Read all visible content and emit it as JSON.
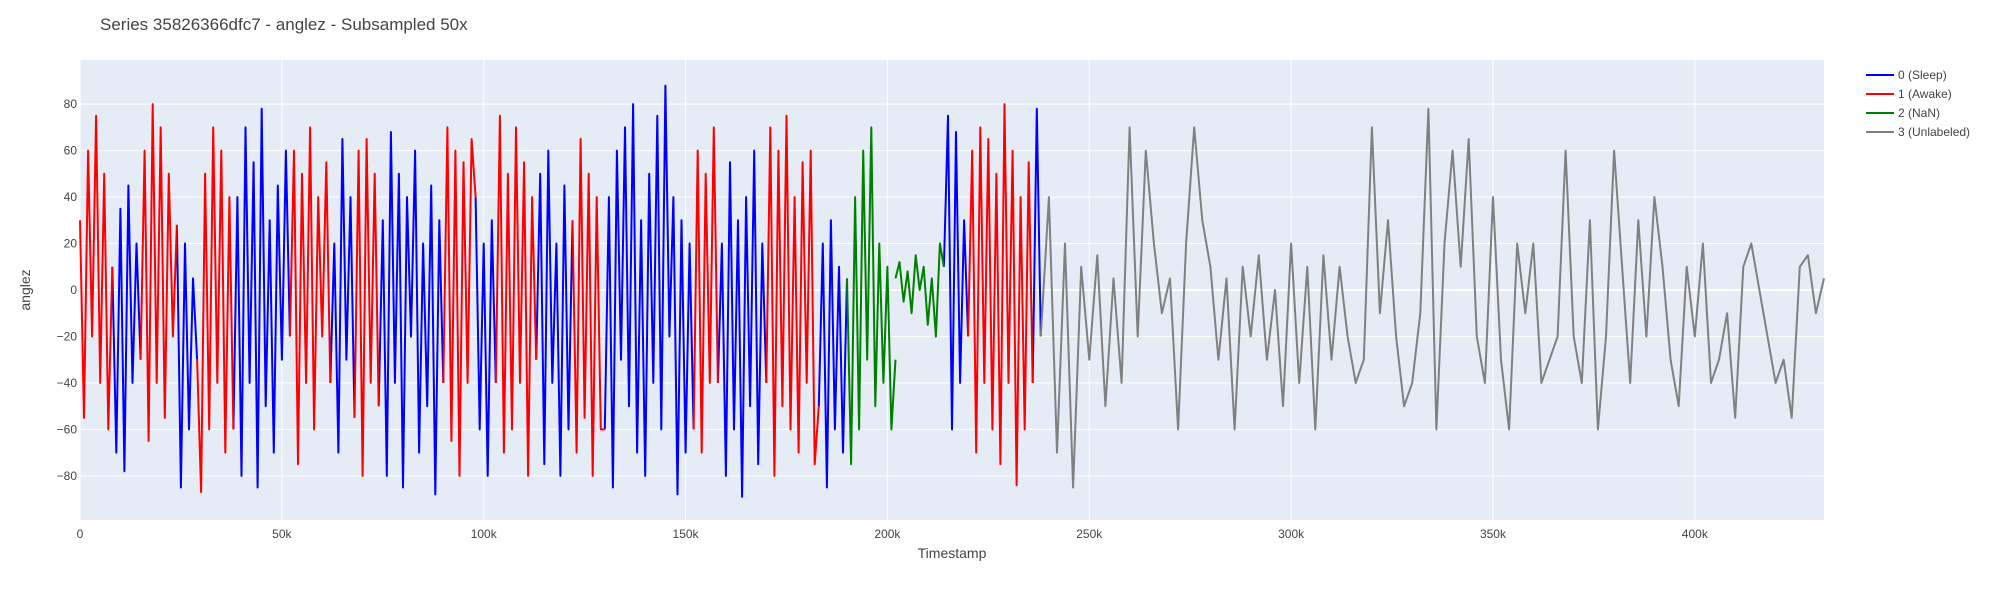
{
  "chart_data": {
    "type": "line",
    "title": "Series 35826366dfc7 - anglez - Subsampled 50x",
    "xlabel": "Timestamp",
    "ylabel": "anglez",
    "xlim": [
      0,
      432000
    ],
    "ylim": [
      -99,
      99
    ],
    "x_ticks": [
      0,
      50000,
      100000,
      150000,
      200000,
      250000,
      300000,
      350000,
      400000
    ],
    "x_tick_labels": [
      "0",
      "50k",
      "100k",
      "150k",
      "200k",
      "250k",
      "300k",
      "350k",
      "400k"
    ],
    "y_ticks": [
      -80,
      -60,
      -40,
      -20,
      0,
      20,
      40,
      60,
      80
    ],
    "y_tick_labels": [
      "−80",
      "−60",
      "−40",
      "−20",
      "0",
      "20",
      "40",
      "60",
      "80"
    ],
    "grid": true,
    "legend_position": "top-right",
    "series": [
      {
        "name": "0 (Sleep)",
        "color": "#0000ff",
        "segments": [
          {
            "x": [
              8000,
              9000,
              10000,
              11000,
              12000,
              13000,
              14000,
              15000
            ],
            "y": [
              10,
              -70,
              35,
              -78,
              45,
              -40,
              20,
              -30
            ]
          },
          {
            "x": [
              24000,
              25000,
              26000,
              27000,
              28000,
              29000
            ],
            "y": [
              28,
              -85,
              20,
              -60,
              5,
              -30
            ]
          },
          {
            "x": [
              38000,
              39000,
              40000,
              41000,
              42000,
              43000,
              44000,
              45000,
              46000,
              47000,
              48000,
              49000,
              50000,
              51000,
              52000
            ],
            "y": [
              -60,
              40,
              -80,
              70,
              -40,
              55,
              -85,
              78,
              -50,
              30,
              -70,
              45,
              -30,
              60,
              -20
            ]
          },
          {
            "x": [
              62000,
              63000,
              64000,
              65000,
              66000,
              67000,
              68000
            ],
            "y": [
              -40,
              20,
              -70,
              65,
              -30,
              40,
              -55
            ]
          },
          {
            "x": [
              74000,
              75000,
              76000,
              77000,
              78000,
              79000,
              80000,
              81000,
              82000,
              83000,
              84000,
              85000,
              86000,
              87000,
              88000,
              89000,
              90000
            ],
            "y": [
              -50,
              30,
              -80,
              68,
              -40,
              50,
              -85,
              40,
              -20,
              60,
              -70,
              20,
              -50,
              45,
              -88,
              30,
              -40
            ]
          },
          {
            "x": [
              98000,
              99000,
              100000,
              101000,
              102000,
              103000
            ],
            "y": [
              40,
              -60,
              20,
              -80,
              30,
              -40
            ]
          },
          {
            "x": [
              113000,
              114000,
              115000,
              116000,
              117000,
              118000,
              119000,
              120000,
              121000,
              122000
            ],
            "y": [
              -30,
              50,
              -75,
              60,
              -40,
              20,
              -80,
              45,
              -60,
              30
            ]
          },
          {
            "x": [
              130000,
              131000,
              132000,
              133000,
              134000,
              135000,
              136000,
              137000,
              138000,
              139000,
              140000,
              141000,
              142000,
              143000,
              144000,
              145000,
              146000,
              147000,
              148000,
              149000,
              150000,
              151000,
              152000
            ],
            "y": [
              -60,
              40,
              -85,
              60,
              -30,
              70,
              -50,
              80,
              -70,
              30,
              -80,
              50,
              -40,
              75,
              -60,
              88,
              -20,
              40,
              -88,
              30,
              -70,
              20,
              -60
            ]
          },
          {
            "x": [
              158000,
              159000,
              160000,
              161000,
              162000,
              163000,
              164000,
              165000,
              166000,
              167000,
              168000,
              169000,
              170000
            ],
            "y": [
              -40,
              20,
              -80,
              55,
              -60,
              30,
              -89,
              40,
              -50,
              60,
              -75,
              20,
              -40
            ]
          },
          {
            "x": [
              183000,
              184000,
              185000,
              186000,
              187000,
              188000,
              189000,
              190000
            ],
            "y": [
              -50,
              20,
              -85,
              30,
              -60,
              10,
              -70,
              5
            ]
          },
          {
            "x": [
              214000,
              215000,
              216000,
              217000,
              218000,
              219000,
              220000
            ],
            "y": [
              10,
              75,
              -60,
              68,
              -40,
              30,
              -20
            ]
          },
          {
            "x": [
              236000,
              237000,
              238000
            ],
            "y": [
              -40,
              78,
              -20
            ]
          }
        ]
      },
      {
        "name": "1 (Awake)",
        "color": "#ff0000",
        "segments": [
          {
            "x": [
              0,
              1000,
              2000,
              3000,
              4000,
              5000,
              6000,
              7000,
              8000
            ],
            "y": [
              30,
              -55,
              60,
              -20,
              75,
              -40,
              50,
              -60,
              10
            ]
          },
          {
            "x": [
              15000,
              16000,
              17000,
              18000,
              19000,
              20000,
              21000,
              22000,
              23000,
              24000
            ],
            "y": [
              -30,
              60,
              -65,
              80,
              -40,
              70,
              -55,
              50,
              -20,
              28
            ]
          },
          {
            "x": [
              29000,
              30000,
              31000,
              32000,
              33000,
              34000,
              35000,
              36000,
              37000,
              38000
            ],
            "y": [
              -30,
              -87,
              50,
              -60,
              70,
              -40,
              60,
              -70,
              40,
              -60
            ]
          },
          {
            "x": [
              52000,
              53000,
              54000,
              55000,
              56000,
              57000,
              58000,
              59000,
              60000,
              61000,
              62000
            ],
            "y": [
              -20,
              60,
              -75,
              50,
              -40,
              70,
              -60,
              40,
              -20,
              55,
              -40
            ]
          },
          {
            "x": [
              68000,
              69000,
              70000,
              71000,
              72000,
              73000,
              74000
            ],
            "y": [
              -55,
              60,
              -80,
              65,
              -40,
              50,
              -50
            ]
          },
          {
            "x": [
              90000,
              91000,
              92000,
              93000,
              94000,
              95000,
              96000,
              97000,
              98000
            ],
            "y": [
              -40,
              70,
              -65,
              60,
              -80,
              55,
              -40,
              65,
              40
            ]
          },
          {
            "x": [
              103000,
              104000,
              105000,
              106000,
              107000,
              108000,
              109000,
              110000,
              111000,
              112000,
              113000
            ],
            "y": [
              -40,
              75,
              -70,
              50,
              -60,
              70,
              -40,
              55,
              -80,
              40,
              -30
            ]
          },
          {
            "x": [
              122000,
              123000,
              124000,
              125000,
              126000,
              127000,
              128000,
              129000,
              130000
            ],
            "y": [
              30,
              -70,
              65,
              -55,
              50,
              -80,
              40,
              -60,
              -60
            ]
          },
          {
            "x": [
              152000,
              153000,
              154000,
              155000,
              156000,
              157000,
              158000
            ],
            "y": [
              -60,
              60,
              -70,
              50,
              -40,
              70,
              -40
            ]
          },
          {
            "x": [
              170000,
              171000,
              172000,
              173000,
              174000,
              175000,
              176000,
              177000,
              178000,
              179000,
              180000,
              181000,
              182000,
              183000
            ],
            "y": [
              -40,
              70,
              -80,
              60,
              -50,
              75,
              -60,
              40,
              -70,
              55,
              -40,
              60,
              -75,
              -50
            ]
          },
          {
            "x": [
              220000,
              221000,
              222000,
              223000,
              224000,
              225000,
              226000,
              227000,
              228000,
              229000,
              230000,
              231000,
              232000,
              233000,
              234000,
              235000,
              236000
            ],
            "y": [
              -20,
              60,
              -70,
              70,
              -40,
              65,
              -60,
              50,
              -75,
              80,
              -40,
              60,
              -84,
              40,
              -60,
              55,
              -40
            ]
          }
        ]
      },
      {
        "name": "2 (NaN)",
        "color": "#008000",
        "segments": [
          {
            "x": [
              190000,
              191000,
              192000,
              193000,
              194000,
              195000,
              196000,
              197000,
              198000,
              199000,
              200000,
              201000,
              202000
            ],
            "y": [
              5,
              -75,
              40,
              -60,
              60,
              -30,
              70,
              -50,
              20,
              -40,
              10,
              -60,
              -30
            ]
          },
          {
            "x": [
              202000,
              203000,
              204000,
              205000,
              206000,
              207000,
              208000,
              209000,
              210000,
              211000,
              212000,
              213000,
              214000
            ],
            "y": [
              5,
              12,
              -5,
              8,
              -10,
              15,
              0,
              10,
              -15,
              5,
              -20,
              20,
              10
            ]
          }
        ]
      },
      {
        "name": "3 (Unlabeled)",
        "color": "#808080",
        "segments": [
          {
            "x": [
              238000,
              240000,
              242000,
              244000,
              246000,
              248000,
              250000,
              252000,
              254000,
              256000,
              258000,
              260000,
              262000,
              264000,
              266000,
              268000,
              270000,
              272000,
              274000,
              276000,
              278000,
              280000,
              282000,
              284000,
              286000,
              288000,
              290000,
              292000,
              294000,
              296000,
              298000,
              300000,
              302000,
              304000,
              306000,
              308000,
              310000,
              312000,
              314000,
              316000,
              318000,
              320000,
              322000,
              324000,
              326000,
              328000,
              330000,
              332000,
              334000,
              336000,
              338000,
              340000,
              342000,
              344000,
              346000,
              348000,
              350000,
              352000,
              354000,
              356000,
              358000,
              360000,
              362000,
              364000,
              366000,
              368000,
              370000,
              372000,
              374000,
              376000,
              378000,
              380000,
              382000,
              384000,
              386000,
              388000,
              390000,
              392000,
              394000,
              396000,
              398000,
              400000,
              402000,
              404000,
              406000,
              408000,
              410000,
              412000,
              414000,
              416000,
              418000,
              420000,
              422000,
              424000,
              426000,
              428000,
              430000,
              432000
            ],
            "y": [
              -20,
              40,
              -70,
              20,
              -85,
              10,
              -30,
              15,
              -50,
              5,
              -40,
              70,
              -20,
              60,
              20,
              -10,
              5,
              -60,
              20,
              70,
              30,
              10,
              -30,
              5,
              -60,
              10,
              -20,
              15,
              -30,
              0,
              -50,
              20,
              -40,
              10,
              -60,
              15,
              -30,
              10,
              -20,
              -40,
              -30,
              70,
              -10,
              30,
              -20,
              -50,
              -40,
              -10,
              78,
              -60,
              20,
              60,
              10,
              65,
              -20,
              -40,
              40,
              -30,
              -60,
              20,
              -10,
              20,
              -40,
              -30,
              -20,
              60,
              -20,
              -40,
              30,
              -60,
              -20,
              60,
              10,
              -40,
              30,
              -20,
              40,
              10,
              -30,
              -50,
              10,
              -20,
              20,
              -40,
              -30,
              -10,
              -55,
              10,
              20,
              0,
              -20,
              -40,
              -30,
              -55,
              10,
              15,
              -10,
              5
            ]
          }
        ]
      }
    ]
  }
}
